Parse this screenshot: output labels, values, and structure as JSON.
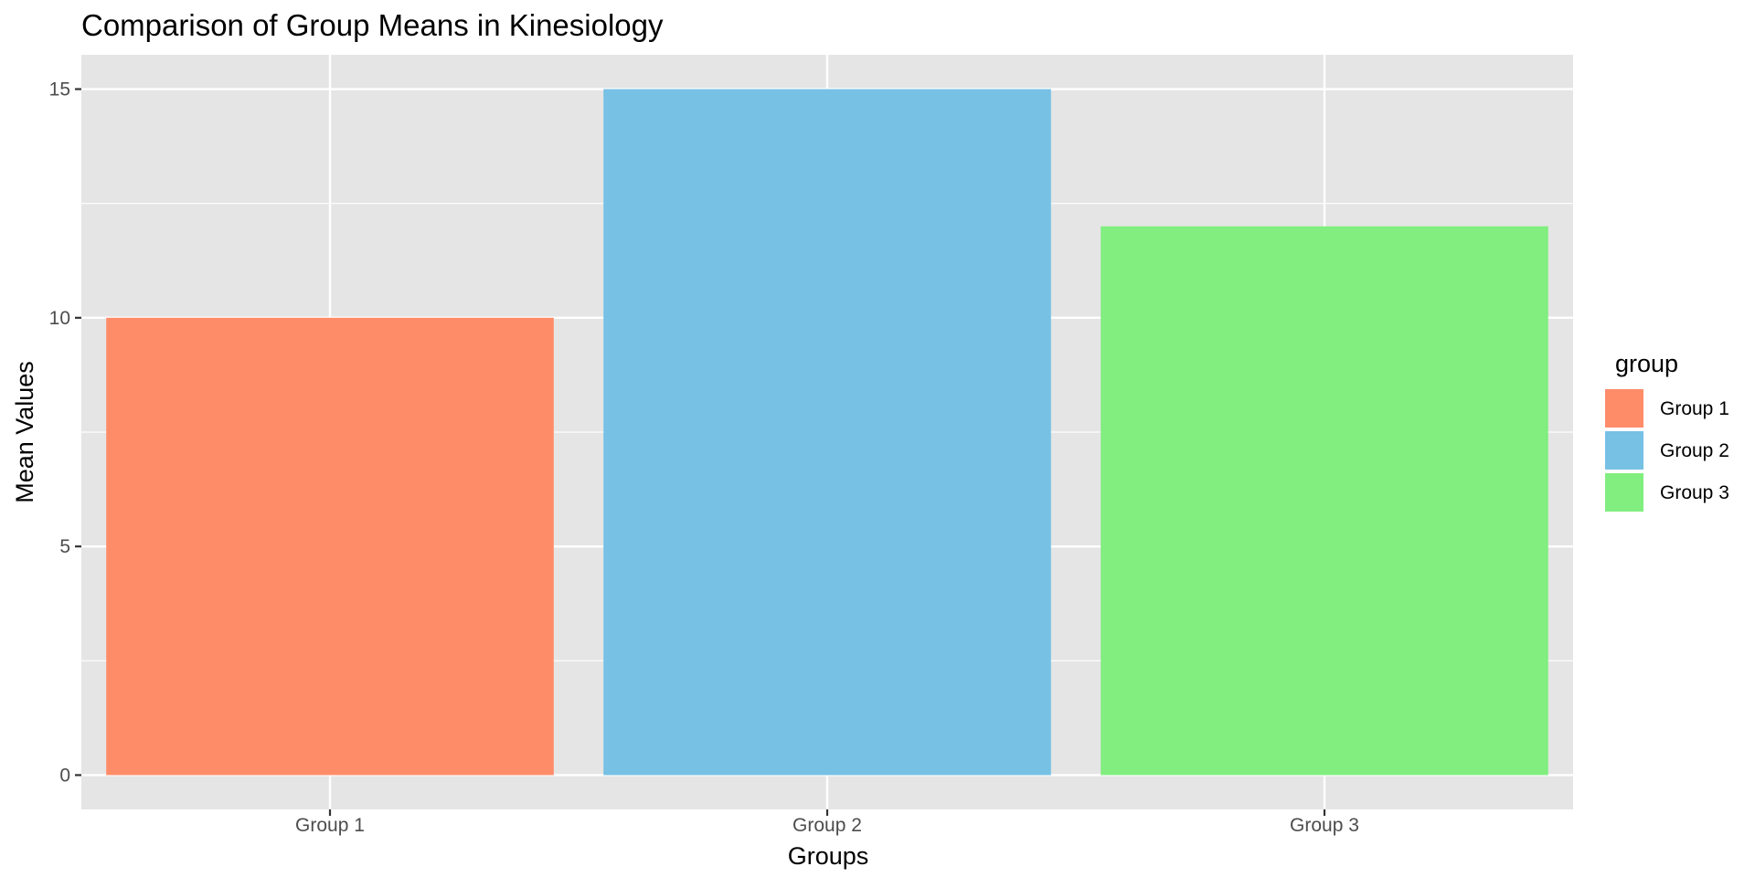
{
  "chart_data": {
    "type": "bar",
    "title": "Comparison of Group Means in Kinesiology",
    "xlabel": "Groups",
    "ylabel": "Mean Values",
    "categories": [
      "Group 1",
      "Group 2",
      "Group 3"
    ],
    "values": [
      10,
      15,
      12
    ],
    "colors": [
      "#ff8c69",
      "#77c1e4",
      "#81ee7f"
    ],
    "ylim": [
      -0.75,
      15.75
    ],
    "yticks": [
      0,
      5,
      10,
      15
    ],
    "ytick_labels": [
      "0",
      "5",
      "10",
      "15"
    ],
    "grid": true,
    "legend": {
      "title": "group",
      "position": "right",
      "items": [
        "Group 1",
        "Group 2",
        "Group 3"
      ]
    }
  },
  "theme": {
    "panel_background": "#e5e5e5",
    "grid_color": "#ffffff",
    "tick_color": "#333333"
  }
}
